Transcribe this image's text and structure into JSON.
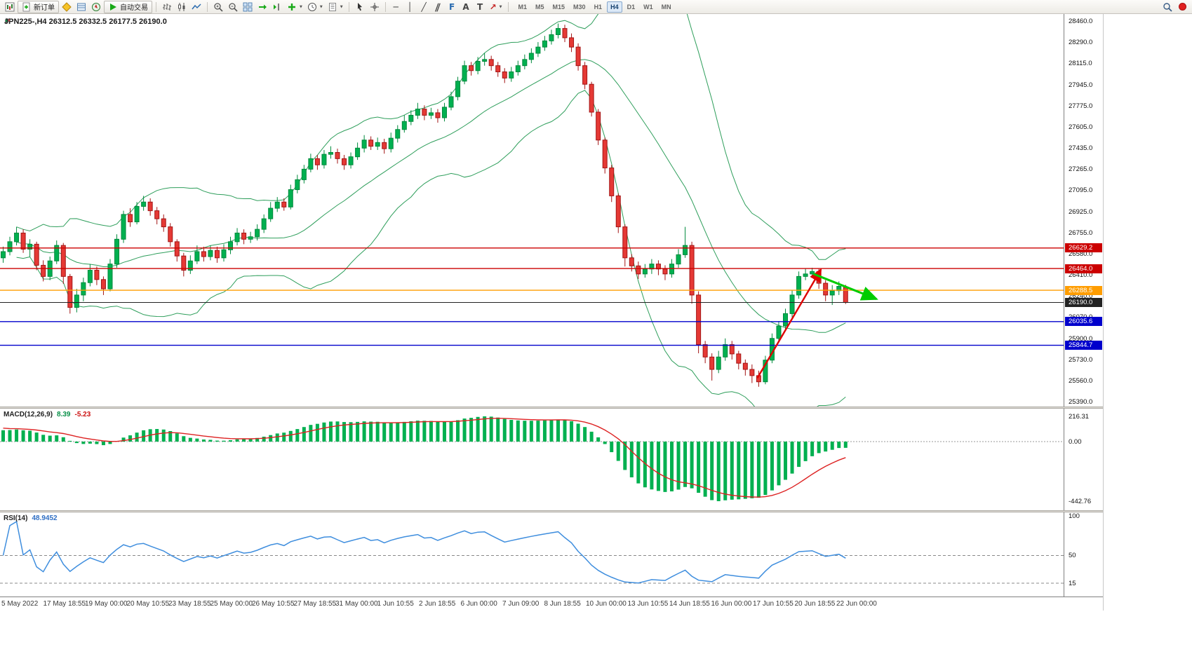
{
  "toolbar": {
    "buttons": {
      "new_order": "新订单",
      "auto_trading": "自动交易"
    },
    "timeframes": [
      "M1",
      "M5",
      "M15",
      "M30",
      "H1",
      "H4",
      "D1",
      "W1",
      "MN"
    ],
    "active_timeframe": "H4",
    "glyphs": {
      "hline": "─",
      "vline": "│",
      "trendline": "╱",
      "channel": "∥",
      "fibonacci": "F",
      "text": "A",
      "label": "T",
      "shapes": "↗",
      "caret": "▼"
    }
  },
  "chart": {
    "symbol_info": "JPN225-,H4 26312.5 26332.5 26177.5 26190.0"
  },
  "chart_data": {
    "type": "candlestick",
    "symbol": "JPN225-",
    "timeframe": "H4",
    "ohlc_display": {
      "open": "26312.5",
      "high": "26332.5",
      "low": "26177.5",
      "close": "26190.0"
    },
    "price_range": {
      "min": 25390.0,
      "max": 28460.0
    },
    "price_axis": [
      "28460.0",
      "28290.0",
      "28115.0",
      "27945.0",
      "27775.0",
      "27605.0",
      "27435.0",
      "27265.0",
      "27095.0",
      "26925.0",
      "26755.0",
      "26580.0",
      "26410.0",
      "26240.0",
      "26070.0",
      "25900.0",
      "25730.0",
      "25560.0",
      "25390.0"
    ],
    "time_labels": [
      "5 May 2022",
      "17 May 18:55",
      "19 May 00:00",
      "20 May 10:55",
      "23 May 18:55",
      "25 May 00:00",
      "26 May 10:55",
      "27 May 18:55",
      "31 May 00:00",
      "1 Jun 10:55",
      "2 Jun 18:55",
      "6 Jun 00:00",
      "7 Jun 09:00",
      "8 Jun 18:55",
      "10 Jun 00:00",
      "13 Jun 10:55",
      "14 Jun 18:55",
      "16 Jun 00:00",
      "17 Jun 10:55",
      "20 Jun 18:55",
      "22 Jun 00:00"
    ],
    "colors": {
      "up": "#00b050",
      "up_border": "#008a3c",
      "down": "#e53935",
      "down_border": "#a31515",
      "current_price_line": "#444444"
    },
    "bollinger": {
      "period": 20,
      "deviation": 2,
      "color": "#2e9e5b"
    },
    "levels": [
      {
        "price": 26629.2,
        "label": "26629.2",
        "color": "#cc0000",
        "width": 1.4
      },
      {
        "price": 26464.0,
        "label": "26464.0",
        "color": "#cc0000",
        "width": 1.4
      },
      {
        "price": 26288.5,
        "label": "26288.5",
        "color": "#ff9d00",
        "width": 1.4
      },
      {
        "price": 26190.0,
        "label": "26190.0",
        "color": "#222222",
        "width": 1.0
      },
      {
        "price": 26035.6,
        "label": "26035.6",
        "color": "#0000cc",
        "width": 1.4
      },
      {
        "price": 25844.7,
        "label": "25844.7",
        "color": "#0000cc",
        "width": 1.4
      }
    ],
    "drawings": [
      {
        "name": "trend-arrow-up",
        "color": "#dd0000",
        "width": 2.4,
        "marker": "arr-red",
        "from_index": 112.8,
        "from_price": 25580,
        "to_index": 122.3,
        "to_price": 26455
      },
      {
        "name": "projection-arrow-down",
        "color": "#00cc00",
        "width": 3,
        "marker": "arr-green",
        "from_index": 121.2,
        "from_price": 26420,
        "to_index": 130.6,
        "to_price": 26218
      }
    ],
    "indicators": [
      {
        "name": "MACD",
        "label": "MACD(12,26,9)",
        "values": [
          "8.39",
          "-5.23"
        ],
        "scale": [
          "216.31",
          "0.00",
          "-442.76"
        ],
        "histogram_color": "#00b050",
        "signal_color": "#dd2222"
      },
      {
        "name": "RSI",
        "label": "RSI(14)",
        "value": "48.9452",
        "scale": [
          "100",
          "50",
          "15"
        ],
        "line_color": "#3f8ede"
      }
    ],
    "candles_ohlc": [
      [
        26550,
        26640,
        26510,
        26600
      ],
      [
        26600,
        26720,
        26570,
        26680
      ],
      [
        26680,
        26800,
        26650,
        26750
      ],
      [
        26750,
        26780,
        26590,
        26620
      ],
      [
        26620,
        26700,
        26560,
        26660
      ],
      [
        26660,
        26680,
        26450,
        26490
      ],
      [
        26490,
        26530,
        26360,
        26400
      ],
      [
        26400,
        26560,
        26370,
        26525
      ],
      [
        26525,
        26690,
        26500,
        26650
      ],
      [
        26650,
        26670,
        26340,
        26400
      ],
      [
        26400,
        26420,
        26100,
        26150
      ],
      [
        26150,
        26300,
        26110,
        26250
      ],
      [
        26250,
        26390,
        26200,
        26350
      ],
      [
        26350,
        26500,
        26320,
        26450
      ],
      [
        26450,
        26480,
        26330,
        26375
      ],
      [
        26375,
        26400,
        26250,
        26300
      ],
      [
        26300,
        26540,
        26280,
        26500
      ],
      [
        26500,
        26740,
        26470,
        26700
      ],
      [
        26700,
        26930,
        26670,
        26900
      ],
      [
        26900,
        26950,
        26800,
        26840
      ],
      [
        26840,
        27000,
        26820,
        26965
      ],
      [
        26965,
        27050,
        26930,
        27000
      ],
      [
        27000,
        27030,
        26890,
        26930
      ],
      [
        26930,
        26960,
        26820,
        26865
      ],
      [
        26865,
        26900,
        26760,
        26800
      ],
      [
        26800,
        26830,
        26640,
        26680
      ],
      [
        26680,
        26700,
        26520,
        26565
      ],
      [
        26565,
        26590,
        26400,
        26450
      ],
      [
        26450,
        26570,
        26420,
        26525
      ],
      [
        26525,
        26650,
        26500,
        26600
      ],
      [
        26600,
        26640,
        26520,
        26560
      ],
      [
        26560,
        26650,
        26530,
        26610
      ],
      [
        26610,
        26640,
        26510,
        26550
      ],
      [
        26550,
        26660,
        26520,
        26615
      ],
      [
        26615,
        26720,
        26580,
        26680
      ],
      [
        26680,
        26790,
        26650,
        26750
      ],
      [
        26750,
        26780,
        26660,
        26700
      ],
      [
        26700,
        26760,
        26670,
        26720
      ],
      [
        26720,
        26820,
        26690,
        26780
      ],
      [
        26780,
        26900,
        26750,
        26865
      ],
      [
        26865,
        27000,
        26840,
        26950
      ],
      [
        26950,
        27040,
        26920,
        27000
      ],
      [
        27000,
        27030,
        26930,
        26960
      ],
      [
        26960,
        27140,
        26940,
        27100
      ],
      [
        27100,
        27220,
        27070,
        27180
      ],
      [
        27180,
        27300,
        27150,
        27265
      ],
      [
        27265,
        27390,
        27240,
        27350
      ],
      [
        27350,
        27380,
        27260,
        27300
      ],
      [
        27300,
        27420,
        27270,
        27385
      ],
      [
        27385,
        27450,
        27350,
        27400
      ],
      [
        27400,
        27430,
        27310,
        27350
      ],
      [
        27350,
        27380,
        27260,
        27300
      ],
      [
        27300,
        27400,
        27270,
        27365
      ],
      [
        27365,
        27480,
        27340,
        27435
      ],
      [
        27435,
        27540,
        27400,
        27500
      ],
      [
        27500,
        27530,
        27420,
        27450
      ],
      [
        27450,
        27520,
        27420,
        27480
      ],
      [
        27480,
        27510,
        27390,
        27430
      ],
      [
        27430,
        27560,
        27400,
        27515
      ],
      [
        27515,
        27620,
        27480,
        27585
      ],
      [
        27585,
        27700,
        27560,
        27650
      ],
      [
        27650,
        27740,
        27620,
        27700
      ],
      [
        27700,
        27800,
        27670,
        27750
      ],
      [
        27750,
        27780,
        27660,
        27700
      ],
      [
        27700,
        27760,
        27670,
        27720
      ],
      [
        27720,
        27750,
        27640,
        27680
      ],
      [
        27680,
        27800,
        27650,
        27765
      ],
      [
        27765,
        27890,
        27740,
        27850
      ],
      [
        27850,
        28010,
        27820,
        27975
      ],
      [
        27975,
        28140,
        27950,
        28100
      ],
      [
        28100,
        28130,
        28020,
        28060
      ],
      [
        28060,
        28170,
        28030,
        28135
      ],
      [
        28135,
        28200,
        28100,
        28150
      ],
      [
        28150,
        28180,
        28060,
        28100
      ],
      [
        28100,
        28130,
        28010,
        28050
      ],
      [
        28050,
        28080,
        27960,
        28000
      ],
      [
        28000,
        28090,
        27970,
        28050
      ],
      [
        28050,
        28140,
        28020,
        28100
      ],
      [
        28100,
        28190,
        28070,
        28150
      ],
      [
        28150,
        28240,
        28120,
        28200
      ],
      [
        28200,
        28290,
        28170,
        28250
      ],
      [
        28250,
        28340,
        28220,
        28300
      ],
      [
        28300,
        28390,
        28270,
        28350
      ],
      [
        28350,
        28440,
        28320,
        28400
      ],
      [
        28400,
        28430,
        28290,
        28325
      ],
      [
        28325,
        28360,
        28210,
        28250
      ],
      [
        28250,
        28280,
        28060,
        28100
      ],
      [
        28100,
        28130,
        27910,
        27950
      ],
      [
        27950,
        27970,
        27690,
        27725
      ],
      [
        27725,
        27750,
        27460,
        27500
      ],
      [
        27500,
        27520,
        27230,
        27275
      ],
      [
        27275,
        27300,
        27000,
        27050
      ],
      [
        27050,
        27070,
        26750,
        26800
      ],
      [
        26800,
        26820,
        26480,
        26550
      ],
      [
        26550,
        26580,
        26440,
        26485
      ],
      [
        26485,
        26520,
        26380,
        26420
      ],
      [
        26420,
        26500,
        26390,
        26460
      ],
      [
        26460,
        26540,
        26420,
        26500
      ],
      [
        26500,
        26530,
        26410,
        26460
      ],
      [
        26460,
        26490,
        26370,
        26420
      ],
      [
        26420,
        26540,
        26390,
        26500
      ],
      [
        26500,
        26620,
        26470,
        26575
      ],
      [
        26575,
        26800,
        26550,
        26650
      ],
      [
        26650,
        26680,
        26180,
        26250
      ],
      [
        26250,
        26280,
        25780,
        25850
      ],
      [
        25850,
        25880,
        25700,
        25750
      ],
      [
        25750,
        25780,
        25560,
        25650
      ],
      [
        25650,
        25800,
        25620,
        25750
      ],
      [
        25750,
        25900,
        25720,
        25850
      ],
      [
        25850,
        25880,
        25730,
        25775
      ],
      [
        25775,
        25800,
        25650,
        25700
      ],
      [
        25700,
        25730,
        25600,
        25650
      ],
      [
        25650,
        25690,
        25540,
        25600
      ],
      [
        25600,
        25640,
        25510,
        25550
      ],
      [
        25550,
        25760,
        25530,
        25725
      ],
      [
        25725,
        25940,
        25700,
        25900
      ],
      [
        25900,
        26040,
        25870,
        26000
      ],
      [
        26000,
        26140,
        25970,
        26100
      ],
      [
        26100,
        26290,
        26070,
        26250
      ],
      [
        26250,
        26440,
        26220,
        26400
      ],
      [
        26400,
        26465,
        26370,
        26420
      ],
      [
        26420,
        26470,
        26390,
        26440
      ],
      [
        26440,
        26460,
        26300,
        26345
      ],
      [
        26345,
        26370,
        26200,
        26250
      ],
      [
        26250,
        26330,
        26170,
        26285
      ],
      [
        26285,
        26360,
        26250,
        26320
      ],
      [
        26312.5,
        26332.5,
        26177.5,
        26190
      ]
    ]
  }
}
